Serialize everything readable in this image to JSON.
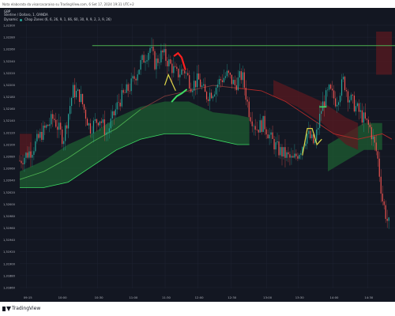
{
  "header_note": "Nota elaborata da visarcacaraiso su TradingView.com, 6 Set 17, 2024 19:31 UTC+2",
  "symbol_code": "GBP",
  "legend": {
    "line1": "Sterline / Dollaro, 1, OANDA",
    "line2_label": "Dynamic",
    "line2_value": "Chop Zones (6, 6, 26, 9, 1, 66, 60, 30, 9, 9, 2, 3, 9, 26)"
  },
  "footer_brand": "TradingView",
  "colors": {
    "background": "#131722",
    "grid": "#1f2433",
    "bull": "#26a69a",
    "bear": "#ef5350",
    "horizontal_line": "#4caf50",
    "ma_green": "#4caf50",
    "ma_red": "#b22a2a",
    "zone_green": "#1e5e32",
    "zone_red": "#5a1a20",
    "signal_yellow": "#e0d84a",
    "signal_red": "#ff1e1e",
    "axis_text": "#b2b5be"
  },
  "chart_data": {
    "type": "candlestick",
    "y_ticks": [
      "1,32300",
      "1,32280",
      "1,32260",
      "1,32240",
      "1,32220",
      "1,32200",
      "1,32180",
      "1,32160",
      "1,32140",
      "1,32120",
      "1,32100",
      "1,32080",
      "1,32060",
      "1,32040",
      "1,32020",
      "1,32000",
      "1,31980",
      "1,31960",
      "1,31940",
      "1,31920",
      "1,31900",
      "1,31880",
      "1,31860"
    ],
    "x_ticks": [
      "09:15",
      "10:00",
      "10:30",
      "11:00",
      "11:30",
      "12:00",
      "12:30",
      "13:00",
      "13:30",
      "14:00",
      "14:30"
    ],
    "ylim": [
      1.3185,
      1.3232
    ],
    "horizontal_line": 1.32294,
    "close_path": [
      [
        0,
        1.3208
      ],
      [
        10,
        1.321
      ],
      [
        18,
        1.3213
      ],
      [
        28,
        1.3216
      ],
      [
        36,
        1.3212
      ],
      [
        44,
        1.3221
      ],
      [
        50,
        1.322
      ],
      [
        58,
        1.3214
      ],
      [
        66,
        1.3216
      ],
      [
        72,
        1.3213
      ],
      [
        82,
        1.3219
      ],
      [
        92,
        1.3222
      ],
      [
        100,
        1.3226
      ],
      [
        108,
        1.3229
      ],
      [
        112,
        1.3226
      ],
      [
        118,
        1.3228
      ],
      [
        124,
        1.3226
      ],
      [
        130,
        1.3224
      ],
      [
        136,
        1.3225
      ],
      [
        142,
        1.3222
      ],
      [
        148,
        1.3223
      ],
      [
        154,
        1.322
      ],
      [
        160,
        1.3221
      ],
      [
        166,
        1.3223
      ],
      [
        172,
        1.3224
      ],
      [
        178,
        1.3222
      ],
      [
        184,
        1.3224
      ],
      [
        190,
        1.3217
      ],
      [
        196,
        1.3214
      ],
      [
        202,
        1.3215
      ],
      [
        208,
        1.3212
      ],
      [
        214,
        1.321
      ],
      [
        220,
        1.3209
      ],
      [
        226,
        1.3208
      ],
      [
        232,
        1.321
      ],
      [
        238,
        1.3213
      ],
      [
        244,
        1.3211
      ],
      [
        250,
        1.3218
      ],
      [
        256,
        1.3221
      ],
      [
        262,
        1.3219
      ],
      [
        268,
        1.3223
      ],
      [
        272,
        1.322
      ],
      [
        278,
        1.3218
      ],
      [
        284,
        1.3216
      ],
      [
        290,
        1.3214
      ],
      [
        296,
        1.3209
      ],
      [
        300,
        1.3201
      ],
      [
        304,
        1.3197
      ],
      [
        308,
        1.3195
      ]
    ],
    "ma_path": [
      [
        0,
        1.32045
      ],
      [
        20,
        1.3206
      ],
      [
        40,
        1.32085
      ],
      [
        60,
        1.32115
      ],
      [
        80,
        1.3214
      ],
      [
        100,
        1.32175
      ],
      [
        120,
        1.322
      ],
      [
        140,
        1.3221
      ],
      [
        160,
        1.3222
      ],
      [
        180,
        1.32215
      ],
      [
        200,
        1.3221
      ],
      [
        220,
        1.3219
      ],
      [
        240,
        1.3216
      ],
      [
        260,
        1.3213
      ],
      [
        280,
        1.3212
      ],
      [
        300,
        1.3213
      ],
      [
        308,
        1.3212
      ]
    ],
    "ma_green_until": 100,
    "ma_red_from": 180,
    "green_zone": {
      "top": [
        [
          0,
          1.3206
        ],
        [
          20,
          1.3208
        ],
        [
          40,
          1.3211
        ],
        [
          60,
          1.3213
        ],
        [
          80,
          1.3216
        ],
        [
          100,
          1.3218
        ],
        [
          120,
          1.3219
        ],
        [
          140,
          1.3219
        ],
        [
          160,
          1.3217
        ],
        [
          180,
          1.32165
        ],
        [
          190,
          1.3216
        ]
      ],
      "bottom": [
        [
          0,
          1.3203
        ],
        [
          20,
          1.3203
        ],
        [
          40,
          1.3204
        ],
        [
          60,
          1.3207
        ],
        [
          80,
          1.321
        ],
        [
          100,
          1.3212
        ],
        [
          120,
          1.3213
        ],
        [
          140,
          1.3213
        ],
        [
          160,
          1.3212
        ],
        [
          180,
          1.3211
        ],
        [
          190,
          1.3211
        ]
      ]
    },
    "green_zone2": {
      "top": [
        [
          255,
          1.3211
        ],
        [
          270,
          1.3213
        ],
        [
          285,
          1.3215
        ],
        [
          300,
          1.3215
        ]
      ],
      "bottom": [
        [
          255,
          1.3206
        ],
        [
          270,
          1.3208
        ],
        [
          285,
          1.321
        ],
        [
          300,
          1.321
        ]
      ]
    },
    "red_zone_left": {
      "top": [
        [
          0,
          1.3213
        ],
        [
          10,
          1.3213
        ]
      ],
      "bottom": [
        [
          0,
          1.3209
        ],
        [
          10,
          1.3209
        ]
      ]
    },
    "red_zone_mid": {
      "top": [
        [
          210,
          1.3223
        ],
        [
          230,
          1.3221
        ],
        [
          250,
          1.3219
        ],
        [
          270,
          1.3216
        ],
        [
          280,
          1.3215
        ]
      ],
      "bottom": [
        [
          210,
          1.322
        ],
        [
          230,
          1.3218
        ],
        [
          250,
          1.3215
        ],
        [
          270,
          1.3211
        ],
        [
          280,
          1.321
        ]
      ]
    },
    "red_zone_right": {
      "top": [
        [
          295,
          1.3232
        ],
        [
          308,
          1.3232
        ]
      ],
      "bottom": [
        [
          295,
          1.3224
        ],
        [
          308,
          1.3224
        ]
      ]
    },
    "signals": {
      "yellow_up": [
        [
          120,
          1.3222
        ],
        [
          123,
          1.3224
        ],
        [
          126,
          1.32225
        ],
        [
          129,
          1.3221
        ]
      ],
      "red_cap": [
        [
          128,
          1.32275
        ],
        [
          131,
          1.3228
        ],
        [
          134,
          1.32272
        ],
        [
          137,
          1.3225
        ]
      ],
      "green_hook": [
        [
          126,
          1.3219
        ],
        [
          130,
          1.322
        ],
        [
          134,
          1.32205
        ],
        [
          138,
          1.32212
        ]
      ],
      "yellow_right": [
        [
          234,
          1.3209
        ],
        [
          238,
          1.3214
        ],
        [
          242,
          1.3214
        ],
        [
          246,
          1.3211
        ],
        [
          250,
          1.3212
        ]
      ],
      "green_right": [
        [
          248,
          1.3218
        ],
        [
          254,
          1.3218
        ]
      ]
    }
  }
}
